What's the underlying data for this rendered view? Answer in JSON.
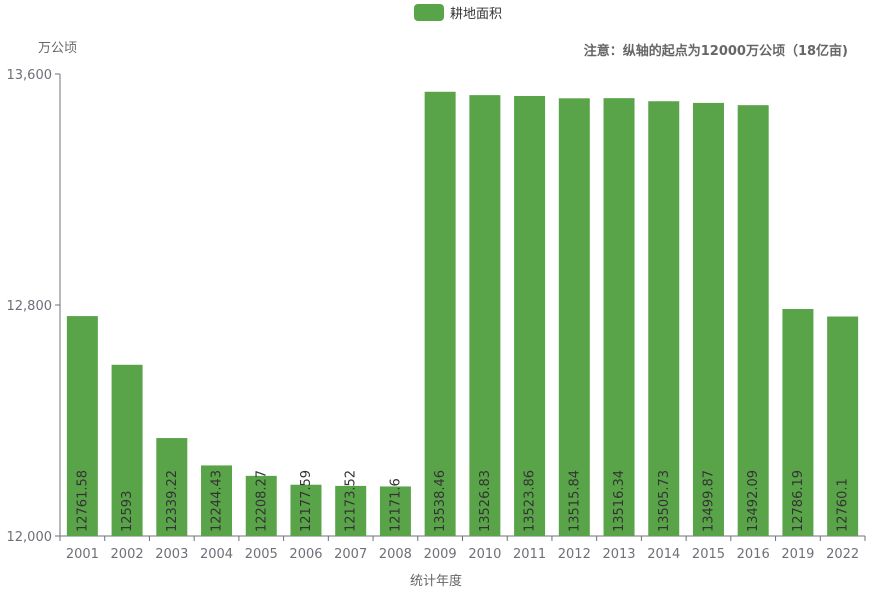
{
  "chart_data": {
    "type": "bar",
    "unit_label": "万公顷",
    "note": "注意：纵轴的起点为12000万公顷（18亿亩)",
    "xlabel": "统计年度",
    "ylim": [
      12000,
      13600
    ],
    "y_ticks": [
      "12,000",
      "12,800",
      "13,600"
    ],
    "y_tick_values": [
      12000,
      12800,
      13600
    ],
    "grid": false,
    "legend_position": "top-center",
    "bar_color": "#59a449",
    "categories": [
      "2001",
      "2002",
      "2003",
      "2004",
      "2005",
      "2006",
      "2007",
      "2008",
      "2009",
      "2010",
      "2011",
      "2012",
      "2013",
      "2014",
      "2015",
      "2016",
      "2019",
      "2022"
    ],
    "series": [
      {
        "name": "耕地面积",
        "values": [
          12761.58,
          12593,
          12339.22,
          12244.43,
          12208.27,
          12177.59,
          12173.52,
          12171.6,
          13538.46,
          13526.83,
          13523.86,
          13515.84,
          13516.34,
          13505.73,
          13499.87,
          13492.09,
          12786.19,
          12760.1
        ],
        "labels": [
          "12761.58",
          "12593",
          "12339.22",
          "12244.43",
          "12208.27",
          "12177.59",
          "12173.52",
          "12171.6",
          "13538.46",
          "13526.83",
          "13523.86",
          "13515.84",
          "13516.34",
          "13505.73",
          "13499.87",
          "13492.09",
          "12786.19",
          "12760.1"
        ]
      }
    ]
  }
}
